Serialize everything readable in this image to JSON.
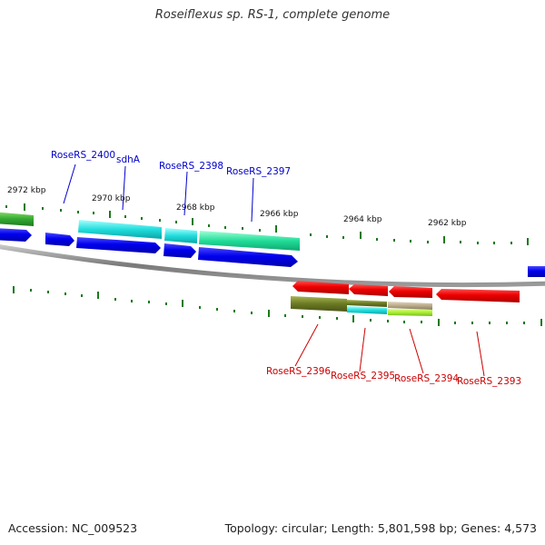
{
  "title": "Roseiflexus sp. RS-1, complete genome",
  "footer": {
    "accession": "Accession: NC_009523",
    "summary": "Topology: circular; Length: 5,801,598 bp; Genes: 4,573"
  },
  "scale_ticks": [
    "2972 kbp",
    "2970 kbp",
    "2968 kbp",
    "2966 kbp",
    "2964 kbp",
    "2962 kbp"
  ],
  "gene_labels_top": [
    {
      "text": "RoseRS_2400",
      "color": "#0000cc"
    },
    {
      "text": "sdhA",
      "color": "#0000cc"
    },
    {
      "text": "RoseRS_2398",
      "color": "#0000cc"
    },
    {
      "text": "RoseRS_2397",
      "color": "#0000cc"
    }
  ],
  "gene_labels_bottom": [
    {
      "text": "RoseRS_2396",
      "color": "#cc0000"
    },
    {
      "text": "RoseRS_2395",
      "color": "#cc0000"
    },
    {
      "text": "RoseRS_2394",
      "color": "#cc0000"
    },
    {
      "text": "RoseRS_2393",
      "color": "#cc0000"
    }
  ],
  "colors": {
    "forward_gene": "#0000ee",
    "reverse_gene": "#ee0000",
    "backbone": "#808080",
    "tick_marks": "#1a7a1a",
    "cog_cyan": "#22dddd",
    "cog_teal": "#22dd99",
    "cog_green": "#33aa33",
    "cog_olive": "#6b7a22",
    "cog_lime": "#aaee33",
    "cog_tan": "#bbaa88"
  }
}
